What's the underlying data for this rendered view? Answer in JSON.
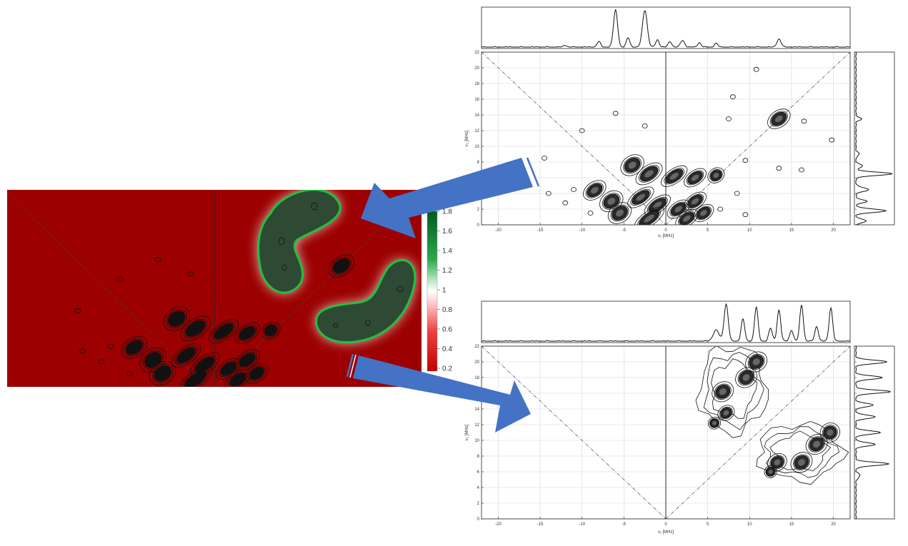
{
  "figure": {
    "arrows": {
      "color": "#4472C4"
    },
    "filter_panel": {
      "background_color": "#9C0000",
      "region_color": "#2F4A34",
      "glow_color": "#22C040"
    }
  },
  "chart_data": [
    {
      "id": "top",
      "type": "contour",
      "xlabel": "ν₁ [MHz]",
      "ylabel": "ν₂ [MHz]",
      "xlim": [
        -22,
        22
      ],
      "ylim": [
        0,
        22
      ],
      "xticks": [
        -20,
        -15,
        -10,
        -5,
        0,
        5,
        10,
        15,
        20
      ],
      "yticks": [
        0,
        2,
        4,
        6,
        8,
        10,
        12,
        14,
        16,
        18,
        20,
        22
      ],
      "grid": true,
      "diagonals": true,
      "peaks": [
        {
          "x": 13.5,
          "y": 13.5,
          "rx": 1.0,
          "ry": 0.7
        },
        {
          "x": -4,
          "y": 7.6,
          "rx": 1.0,
          "ry": 0.8
        },
        {
          "x": -2,
          "y": 6.5,
          "rx": 1.2,
          "ry": 0.7
        },
        {
          "x": 1,
          "y": 6.2,
          "rx": 1.2,
          "ry": 0.6
        },
        {
          "x": 3.5,
          "y": 6.0,
          "rx": 1.0,
          "ry": 0.6
        },
        {
          "x": 6,
          "y": 6.3,
          "rx": 0.7,
          "ry": 0.6
        },
        {
          "x": -8.5,
          "y": 4.4,
          "rx": 1.0,
          "ry": 0.7
        },
        {
          "x": -6.5,
          "y": 3.0,
          "rx": 1.0,
          "ry": 0.8
        },
        {
          "x": -5.5,
          "y": 1.5,
          "rx": 1.0,
          "ry": 0.8
        },
        {
          "x": -3,
          "y": 3.5,
          "rx": 1.2,
          "ry": 0.6
        },
        {
          "x": -1,
          "y": 2.5,
          "rx": 1.2,
          "ry": 0.6
        },
        {
          "x": 1.5,
          "y": 2.0,
          "rx": 1.0,
          "ry": 0.6
        },
        {
          "x": 3.5,
          "y": 3.0,
          "rx": 1.0,
          "ry": 0.6
        },
        {
          "x": -2,
          "y": 0.8,
          "rx": 1.4,
          "ry": 0.6
        },
        {
          "x": 2.5,
          "y": 0.8,
          "rx": 1.0,
          "ry": 0.6
        },
        {
          "x": 4.5,
          "y": 1.5,
          "rx": 0.9,
          "ry": 0.6
        }
      ],
      "small_contours": [
        {
          "x": 10.8,
          "y": 19.8
        },
        {
          "x": 8.0,
          "y": 16.3
        },
        {
          "x": 7.5,
          "y": 13.5
        },
        {
          "x": 16.5,
          "y": 13.2
        },
        {
          "x": 19.8,
          "y": 10.8
        },
        {
          "x": 13.5,
          "y": 7.2
        },
        {
          "x": 16.2,
          "y": 7.0
        },
        {
          "x": 9.5,
          "y": 8.2
        },
        {
          "x": -14.5,
          "y": 8.5
        },
        {
          "x": -10,
          "y": 12.0
        },
        {
          "x": -6,
          "y": 14.2
        },
        {
          "x": -2.5,
          "y": 12.6
        },
        {
          "x": -14,
          "y": 4.0
        },
        {
          "x": -12,
          "y": 2.8
        },
        {
          "x": -11,
          "y": 4.5
        },
        {
          "x": -9,
          "y": 1.5
        },
        {
          "x": 8.5,
          "y": 4.0
        },
        {
          "x": 6.5,
          "y": 2.0
        },
        {
          "x": 9.5,
          "y": 1.3
        }
      ],
      "proj_top": [
        {
          "x": -6.0,
          "h": 1.0,
          "w": 0.35
        },
        {
          "x": -2.5,
          "h": 1.0,
          "w": 0.4
        },
        {
          "x": -8.0,
          "h": 0.15,
          "w": 0.3
        },
        {
          "x": -4.5,
          "h": 0.25,
          "w": 0.3
        },
        {
          "x": -1.0,
          "h": 0.2,
          "w": 0.3
        },
        {
          "x": 0.5,
          "h": 0.15,
          "w": 0.3
        },
        {
          "x": 2.0,
          "h": 0.18,
          "w": 0.35
        },
        {
          "x": 4.0,
          "h": 0.12,
          "w": 0.3
        },
        {
          "x": 6.0,
          "h": 0.1,
          "w": 0.3
        },
        {
          "x": 13.5,
          "h": 0.22,
          "w": 0.35
        },
        {
          "x": -12.0,
          "h": 0.05,
          "w": 0.3
        }
      ],
      "proj_right": [
        {
          "y": 1.8,
          "h": 0.85,
          "w": 0.3
        },
        {
          "y": 6.5,
          "h": 1.0,
          "w": 0.3
        },
        {
          "y": 4.5,
          "h": 0.35,
          "w": 0.35
        },
        {
          "y": 3.0,
          "h": 0.3,
          "w": 0.3
        },
        {
          "y": 7.5,
          "h": 0.2,
          "w": 0.3
        },
        {
          "y": 13.5,
          "h": 0.15,
          "w": 0.3
        },
        {
          "y": 0.5,
          "h": 0.3,
          "w": 0.3
        },
        {
          "y": 9.0,
          "h": 0.1,
          "w": 0.3
        }
      ]
    },
    {
      "id": "bottom",
      "type": "contour",
      "xlabel": "ν₁ [MHz]",
      "ylabel": "ν₂ [MHz]",
      "xlim": [
        -22,
        22
      ],
      "ylim": [
        0,
        22
      ],
      "xticks": [
        -20,
        -15,
        -10,
        -5,
        0,
        5,
        10,
        15,
        20
      ],
      "yticks": [
        0,
        2,
        4,
        6,
        8,
        10,
        12,
        14,
        16,
        18,
        20,
        22
      ],
      "grid": true,
      "diagonals": true,
      "peaks": [
        {
          "x": 10.8,
          "y": 20.0,
          "rx": 0.9,
          "ry": 0.8
        },
        {
          "x": 9.6,
          "y": 18.0,
          "rx": 0.9,
          "ry": 0.8
        },
        {
          "x": 6.8,
          "y": 16.2,
          "rx": 0.9,
          "ry": 0.8
        },
        {
          "x": 7.2,
          "y": 13.5,
          "rx": 0.7,
          "ry": 0.6
        },
        {
          "x": 5.8,
          "y": 12.2,
          "rx": 0.5,
          "ry": 0.5
        },
        {
          "x": 19.6,
          "y": 11.0,
          "rx": 0.8,
          "ry": 0.8
        },
        {
          "x": 18.0,
          "y": 9.5,
          "rx": 0.9,
          "ry": 0.8
        },
        {
          "x": 16.2,
          "y": 7.2,
          "rx": 0.9,
          "ry": 0.8
        },
        {
          "x": 13.3,
          "y": 7.2,
          "rx": 0.8,
          "ry": 0.7
        },
        {
          "x": 12.5,
          "y": 6.0,
          "rx": 0.5,
          "ry": 0.5
        }
      ],
      "envelopes": [
        {
          "x": 8.0,
          "y": 16.5,
          "rx": 4.0,
          "ry": 5.5
        },
        {
          "x": 16.0,
          "y": 8.5,
          "rx": 5.0,
          "ry": 3.6
        }
      ],
      "proj_top": [
        {
          "x": 7.2,
          "h": 1.0,
          "w": 0.35
        },
        {
          "x": 9.2,
          "h": 0.6,
          "w": 0.3
        },
        {
          "x": 10.8,
          "h": 0.92,
          "w": 0.3
        },
        {
          "x": 12.5,
          "h": 0.35,
          "w": 0.3
        },
        {
          "x": 13.5,
          "h": 0.85,
          "w": 0.3
        },
        {
          "x": 15.0,
          "h": 0.3,
          "w": 0.3
        },
        {
          "x": 16.2,
          "h": 0.98,
          "w": 0.3
        },
        {
          "x": 18.0,
          "h": 0.4,
          "w": 0.3
        },
        {
          "x": 19.7,
          "h": 0.9,
          "w": 0.3
        },
        {
          "x": 6.0,
          "h": 0.3,
          "w": 0.5
        }
      ],
      "proj_right": [
        {
          "y": 7.0,
          "h": 0.92,
          "w": 0.3
        },
        {
          "y": 9.5,
          "h": 0.55,
          "w": 0.3
        },
        {
          "y": 11.0,
          "h": 0.7,
          "w": 0.3
        },
        {
          "y": 13.0,
          "h": 0.55,
          "w": 0.3
        },
        {
          "y": 14.5,
          "h": 0.5,
          "w": 0.3
        },
        {
          "y": 16.2,
          "h": 0.95,
          "w": 0.3
        },
        {
          "y": 18.0,
          "h": 0.75,
          "w": 0.3
        },
        {
          "y": 20.0,
          "h": 0.88,
          "w": 0.3
        },
        {
          "y": 5.5,
          "h": 0.12,
          "w": 0.4
        }
      ]
    },
    {
      "id": "filter",
      "type": "heatmap",
      "colorbar": {
        "ticks": [
          "1.8",
          "1.6",
          "1.4",
          "1.2",
          "1",
          "0.8",
          "0.6",
          "0.4",
          "0.2"
        ]
      },
      "filter_regions": 2
    }
  ]
}
